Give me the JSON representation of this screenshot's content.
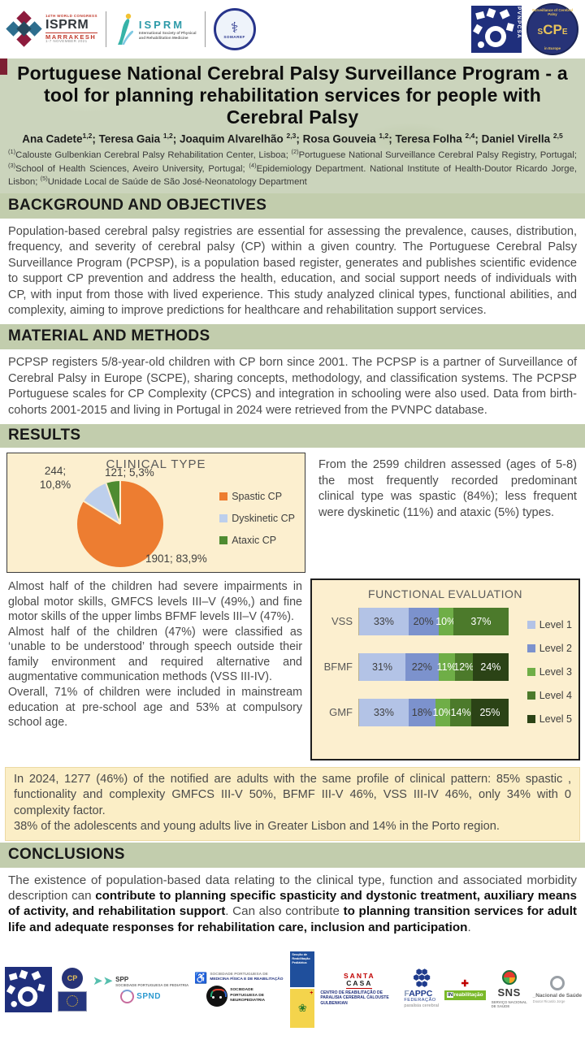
{
  "header": {
    "isprm_marrakesh": {
      "congress": "14TH WORLD CONGRESS",
      "name": "ISPRM",
      "city": "MARRAKESH",
      "date": "1-7 NOVEMBER 2021"
    },
    "isprm_intl": {
      "name": "ISPRM",
      "sub1": "International Society of Physical",
      "sub2": "and Rehabilitation Medicine"
    },
    "somaref": {
      "name": "SOMAREF",
      "figure": "⚕"
    },
    "pvnpcsa": {
      "label": "PVNPCSA"
    },
    "scpe": {
      "ring_top": "Surveillance of Cerebral Palsy",
      "big": "CP",
      "s": "S",
      "e": "E",
      "ring_bottom": "in Europe"
    }
  },
  "title": "Portuguese National Cerebral Palsy Surveillance Program - a tool for planning rehabilitation services for people with Cerebral Palsy",
  "authors": [
    {
      "name": "Ana Cadete",
      "sup": "1,2"
    },
    {
      "name": "Teresa Gaia ",
      "sup": "1,2"
    },
    {
      "name": "Joaquim Alvarelhão ",
      "sup": "2,3"
    },
    {
      "name": "Rosa Gouveia ",
      "sup": "1,2"
    },
    {
      "name": "Teresa Folha ",
      "sup": "2,4"
    },
    {
      "name": "Daniel Virella ",
      "sup": "2,5"
    }
  ],
  "affiliations": [
    {
      "marker": "(1)",
      "text": "Calouste Gulbenkian Cerebral Palsy Rehabilitation Center,  Lisboa; "
    },
    {
      "marker": "(2)",
      "text": "Portuguese National Surveillance Cerebral Palsy Registry, Portugal; "
    },
    {
      "marker": "(3)",
      "text": "School of Health Sciences, Aveiro University, Portugal; "
    },
    {
      "marker": "(4)",
      "text": "Epidemiology Department. National Institute of Health-Doutor Ricardo Jorge, Lisbon; "
    },
    {
      "marker": "(5)",
      "text": "Unidade Local de Saúde de São José-Neonatology Department"
    }
  ],
  "sections": {
    "background": {
      "heading": "BACKGROUND AND OBJECTIVES",
      "body": "Population-based cerebral palsy registries are essential for assessing the prevalence, causes, distribution, frequency, and severity of cerebral palsy (CP) within a given country. The Portuguese Cerebral Palsy Surveillance Program (PCPSP), is a population based register, generates and publishes scientific evidence to support CP prevention and address the health, education, and social support needs of individuals with CP, with input from those with lived experience. This study analyzed clinical types, functional abilities, and complexity, aiming to improve predictions for healthcare and rehabilitation support services."
    },
    "methods": {
      "heading": "MATERIAL AND  METHODS",
      "body": "PCPSP registers 5/8-year-old children with CP born since 2001. The PCPSP is a partner of Surveillance of Cerebral Palsy in Europe (SCPE), sharing concepts, methodology, and classification systems. The PCPSP Portuguese scales for CP Complexity (CPCS) and integration in schooling were also used. Data from birth-cohorts 2001-2015 and living in Portugal in 2024 were retrieved from the PVNPC database."
    },
    "results": {
      "heading": "RESULTS",
      "intro": "From the 2599 children assessed (ages of 5-8) the most frequently recorded predominant clinical type was spastic (84%); less frequent were dyskinetic (11%) and ataxic (5%) types.",
      "left_paragraphs": [
        "Almost half of the children had severe impairments in global motor skills, GMFCS levels III–V (49%,) and fine motor skills of the upper limbs BFMF levels III–V (47%).",
        "Almost half of the children (47%) were classified as ‘unable to be understood’ through speech outside their family environment and required alternative and augmentative  communication methods (VSS III-IV).",
        "Overall, 71% of children were included in mainstream education at pre-school age and 53% at compulsory school age."
      ],
      "highlight": [
        "In 2024, 1277 (46%) of the notified are adults with the same profile of clinical pattern: 85% spastic , functionality and complexity GMFCS III-V 50%, BFMF III-V  46%, VSS III-IV 46%, only 34% with 0 complexity factor.",
        "38% of the adolescents and young adults live in Greater Lisbon and 14% in the Porto region."
      ]
    },
    "conclusions": {
      "heading": "CONCLUSIONS",
      "segments": [
        {
          "text": "The existence of population-based data relating to the clinical type, function and associated morbidity description can ",
          "bold": false
        },
        {
          "text": "contribute to planning specific spasticity and dystonic treatment, auxiliary means of activity, and rehabilitation support",
          "bold": true
        },
        {
          "text": ". Can also contribute ",
          "bold": false
        },
        {
          "text": "to planning transition services for adult life and adequate responses for rehabilitation care, inclusion and participation",
          "bold": true
        },
        {
          "text": ".",
          "bold": false
        }
      ]
    }
  },
  "chart_data": [
    {
      "type": "pie",
      "title": "CLINICAL TYPE",
      "labels": [
        "Spastic CP",
        "Dyskinetic CP",
        "Ataxic CP"
      ],
      "values": [
        1901,
        244,
        121
      ],
      "percent_labels": [
        "1901; 83,9%",
        "244; 10,8%",
        "121; 5,3%"
      ],
      "colors": [
        "#ED7D31",
        "#BDCFEC",
        "#4E8B31"
      ],
      "legend_position": "right",
      "start_angle_deg": 0
    },
    {
      "type": "bar",
      "orientation": "horizontal-stacked",
      "title": "FUNCTIONAL EVALUATION",
      "categories": [
        "VSS",
        "BFMF",
        "GMF"
      ],
      "legend": [
        "Level 1",
        "Level 2",
        "Level 3",
        "Level 4",
        "Level 5"
      ],
      "colors": [
        "#B3C3E6",
        "#7C92CD",
        "#6FAE47",
        "#4C7A2B",
        "#2B4316"
      ],
      "series": [
        {
          "category": "VSS",
          "values": [
            33,
            20,
            10,
            37
          ],
          "levels": [
            1,
            2,
            3,
            4
          ]
        },
        {
          "category": "BFMF",
          "values": [
            31,
            22,
            11,
            12,
            24
          ],
          "levels": [
            1,
            2,
            3,
            4,
            5
          ]
        },
        {
          "category": "GMF",
          "values": [
            33,
            18,
            10,
            14,
            25
          ],
          "levels": [
            1,
            2,
            3,
            4,
            5
          ]
        }
      ],
      "value_suffix": "%",
      "xlim": [
        0,
        100
      ]
    }
  ],
  "footer": {
    "pvnpcsa_label": "PVNPCSA",
    "cp_label": "CP",
    "spp_abbr": "SPP",
    "spp_name": "SOCIEDADE PORTUGUESA DE PEDIATRIA",
    "spnd_abbr": "SPND",
    "spmfr_line1": "SOCIEDADE PORTUGUESA DE",
    "spmfr_line2": "MEDICINA FÍSICA E DE REABILITAÇÃO",
    "spnp_line1": "SOCIEDADE",
    "spnp_line2": "PORTUGUESA",
    "spnp_line3": "DE NEUROPEDIATRIA",
    "rehabped_text": "Secção de Reabilitação Pediátrica",
    "santa_casa_1": "SANTA",
    "santa_casa_2": "CASA",
    "crpc_name": "CENTRO DE REABILITAÇÃO DE PARALISIA CEREBRAL CALOUSTE GULBENKIAN",
    "fappc_f": "F",
    "fappc_rest": "APPC",
    "fappc_line2": "FEDERAÇÃO",
    "fappc_line3": "paralisia cerebral",
    "inr_green": "reabilitação",
    "sns_abbr": "SNS",
    "sns_line1": "SERVIÇO NACIONAL",
    "sns_line2": "DE SAÚDE",
    "insa_name": "_Nacional de Saúde",
    "insa_sub": "Doutor Ricardo Jorge"
  }
}
